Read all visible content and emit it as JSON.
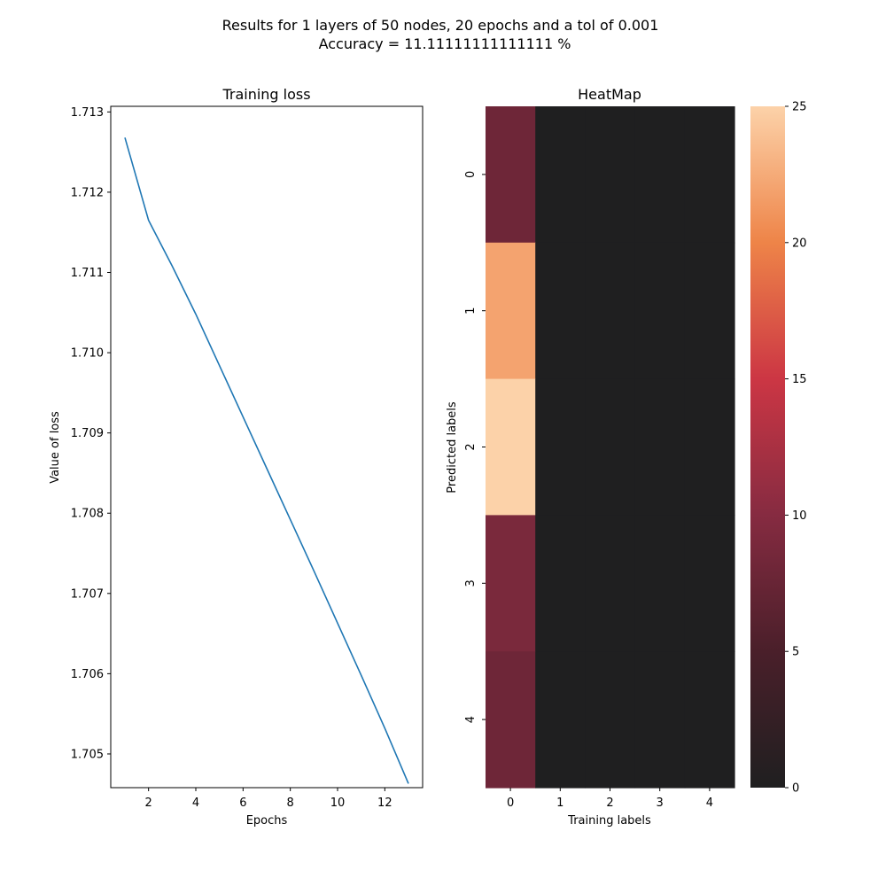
{
  "suptitle": {
    "line1": "Results for 1 layers of 50 nodes, 20 epochs and a tol of 0.001",
    "line2": "Accuracy = 11.11111111111111 %"
  },
  "colors": {
    "line": "#1f77b4",
    "colormap": [
      [
        0.0,
        "#1f1f20"
      ],
      [
        0.2,
        "#4a1f2a"
      ],
      [
        0.4,
        "#862b41"
      ],
      [
        0.6,
        "#cc3644"
      ],
      [
        0.8,
        "#ee8448"
      ],
      [
        1.0,
        "#fcd2a9"
      ]
    ]
  },
  "chart_data": [
    {
      "type": "line",
      "title": "Training loss",
      "xlabel": "Epochs",
      "ylabel": "Value of loss",
      "x": [
        1,
        2,
        3,
        4,
        5,
        6,
        7,
        8,
        9,
        10,
        11,
        12,
        13
      ],
      "y": [
        1.71268,
        1.71165,
        1.71108,
        1.71048,
        1.70984,
        1.7092,
        1.70856,
        1.70792,
        1.70728,
        1.70663,
        1.70598,
        1.70532,
        1.70463
      ],
      "xlim": [
        0.4,
        13.6
      ],
      "ylim": [
        1.70458,
        1.71307
      ],
      "xticks": [
        "2",
        "4",
        "6",
        "8",
        "10",
        "12"
      ],
      "xtick_values": [
        2,
        4,
        6,
        8,
        10,
        12
      ],
      "yticks": [
        "1.705",
        "1.706",
        "1.707",
        "1.708",
        "1.709",
        "1.710",
        "1.711",
        "1.712",
        "1.713"
      ],
      "ytick_values": [
        1.705,
        1.706,
        1.707,
        1.708,
        1.709,
        1.71,
        1.711,
        1.712,
        1.713
      ],
      "grid": false
    },
    {
      "type": "heatmap",
      "title": "HeatMap",
      "xlabel": "Training labels",
      "ylabel": "Predicted labels",
      "x_categories": [
        "0",
        "1",
        "2",
        "3",
        "4"
      ],
      "y_categories": [
        "0",
        "1",
        "2",
        "3",
        "4"
      ],
      "values": [
        [
          8,
          0,
          0,
          0,
          0
        ],
        [
          22,
          0,
          0,
          0,
          0
        ],
        [
          25,
          0,
          0,
          0,
          0
        ],
        [
          9,
          0,
          0,
          0,
          0
        ],
        [
          8,
          0,
          0,
          0,
          0
        ]
      ],
      "vmin": 0,
      "vmax": 25,
      "colorbar_ticks": [
        "0",
        "5",
        "10",
        "15",
        "20",
        "25"
      ],
      "colorbar_tick_values": [
        0,
        5,
        10,
        15,
        20,
        25
      ]
    }
  ]
}
